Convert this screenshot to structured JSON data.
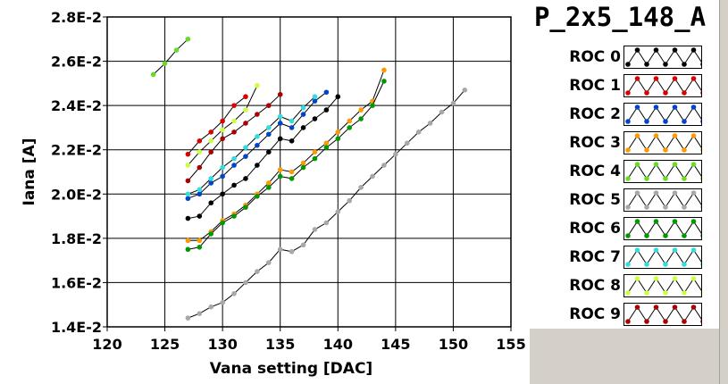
{
  "legend": {
    "title": "P_2x5_148_A",
    "items": [
      {
        "label": "ROC 0",
        "color": "#000000"
      },
      {
        "label": "ROC 1",
        "color": "#dd0000"
      },
      {
        "label": "ROC 2",
        "color": "#0044cc"
      },
      {
        "label": "ROC 3",
        "color": "#ff9900"
      },
      {
        "label": "ROC 4",
        "color": "#66dd22"
      },
      {
        "label": "ROC 5",
        "color": "#a8a8a8"
      },
      {
        "label": "ROC 6",
        "color": "#009900"
      },
      {
        "label": "ROC 7",
        "color": "#33dddd"
      },
      {
        "label": "ROC 8",
        "color": "#ccff44"
      },
      {
        "label": "ROC 9",
        "color": "#aa0000"
      }
    ]
  },
  "chart_data": {
    "type": "scatter",
    "title": "P_2x5_148_A",
    "xlabel": "Vana setting [DAC]",
    "ylabel": "Iana [A]",
    "xlim": [
      120,
      155
    ],
    "ylim": [
      0.014,
      0.028
    ],
    "xticks": [
      "120",
      "125",
      "130",
      "135",
      "140",
      "145",
      "150",
      "155"
    ],
    "yticks": [
      "1.4E-2",
      "1.6E-2",
      "1.8E-2",
      "2.0E-2",
      "2.2E-2",
      "2.4E-2",
      "2.6E-2",
      "2.8E-2"
    ],
    "grid": true,
    "legend_position": "right",
    "series": [
      {
        "name": "ROC 0",
        "color": "#000000",
        "x": [
          127,
          128,
          129,
          130,
          131,
          132,
          133,
          134,
          135,
          136,
          137,
          138,
          139,
          140
        ],
        "y": [
          0.0189,
          0.019,
          0.0196,
          0.02,
          0.0204,
          0.0207,
          0.0213,
          0.0219,
          0.0225,
          0.0224,
          0.023,
          0.0234,
          0.0238,
          0.0244
        ]
      },
      {
        "name": "ROC 1",
        "color": "#dd0000",
        "x": [
          127,
          128,
          129,
          130,
          131,
          132
        ],
        "y": [
          0.0218,
          0.0224,
          0.0228,
          0.0233,
          0.024,
          0.0244
        ]
      },
      {
        "name": "ROC 2",
        "color": "#0044cc",
        "x": [
          127,
          128,
          129,
          130,
          131,
          132,
          133,
          134,
          135,
          136,
          137,
          138,
          139
        ],
        "y": [
          0.0198,
          0.02,
          0.0205,
          0.0208,
          0.0213,
          0.0217,
          0.0222,
          0.0227,
          0.0232,
          0.023,
          0.0236,
          0.0242,
          0.0246
        ]
      },
      {
        "name": "ROC 3",
        "color": "#ff9900",
        "x": [
          127,
          128,
          129,
          130,
          131,
          132,
          133,
          134,
          135,
          136,
          137,
          138,
          139,
          140,
          141,
          142,
          143,
          144
        ],
        "y": [
          0.0179,
          0.0179,
          0.0183,
          0.0188,
          0.0191,
          0.0195,
          0.02,
          0.0205,
          0.0211,
          0.021,
          0.0214,
          0.0219,
          0.0223,
          0.0228,
          0.0233,
          0.0238,
          0.0242,
          0.0256
        ]
      },
      {
        "name": "ROC 4",
        "color": "#66dd22",
        "x": [
          124,
          125,
          126,
          127
        ],
        "y": [
          0.0254,
          0.0259,
          0.0265,
          0.027
        ]
      },
      {
        "name": "ROC 5",
        "color": "#a8a8a8",
        "x": [
          127,
          128,
          129,
          130,
          131,
          132,
          133,
          134,
          135,
          136,
          137,
          138,
          139,
          140,
          141,
          142,
          143,
          144,
          145,
          146,
          147,
          148,
          149,
          150,
          151
        ],
        "y": [
          0.0144,
          0.0146,
          0.0149,
          0.0151,
          0.0155,
          0.016,
          0.0165,
          0.0169,
          0.0175,
          0.0174,
          0.0177,
          0.0184,
          0.0187,
          0.0192,
          0.0197,
          0.0203,
          0.0208,
          0.0213,
          0.0218,
          0.0223,
          0.0228,
          0.0232,
          0.0237,
          0.0241,
          0.0247
        ]
      },
      {
        "name": "ROC 6",
        "color": "#009900",
        "x": [
          127,
          128,
          129,
          130,
          131,
          132,
          133,
          134,
          135,
          136,
          137,
          138,
          139,
          140,
          141,
          142,
          143,
          144
        ],
        "y": [
          0.0175,
          0.0176,
          0.0182,
          0.0187,
          0.019,
          0.0194,
          0.0199,
          0.0203,
          0.0208,
          0.0207,
          0.0212,
          0.0216,
          0.0221,
          0.0225,
          0.023,
          0.0234,
          0.024,
          0.0251
        ]
      },
      {
        "name": "ROC 7",
        "color": "#33dddd",
        "x": [
          127,
          128,
          129,
          130,
          131,
          132,
          133,
          134,
          135,
          136,
          137,
          138
        ],
        "y": [
          0.02,
          0.0202,
          0.0207,
          0.0212,
          0.0216,
          0.0221,
          0.0226,
          0.023,
          0.0235,
          0.0233,
          0.0239,
          0.0244
        ]
      },
      {
        "name": "ROC 8",
        "color": "#ccff44",
        "x": [
          127,
          128,
          129,
          130,
          131,
          132,
          133
        ],
        "y": [
          0.0213,
          0.0219,
          0.0224,
          0.0229,
          0.0233,
          0.0238,
          0.0249
        ]
      },
      {
        "name": "ROC 9",
        "color": "#aa0000",
        "x": [
          127,
          128,
          129,
          130,
          131,
          132,
          133,
          134,
          135
        ],
        "y": [
          0.0206,
          0.0212,
          0.0219,
          0.0225,
          0.0228,
          0.0232,
          0.0236,
          0.024,
          0.0245
        ]
      }
    ]
  }
}
